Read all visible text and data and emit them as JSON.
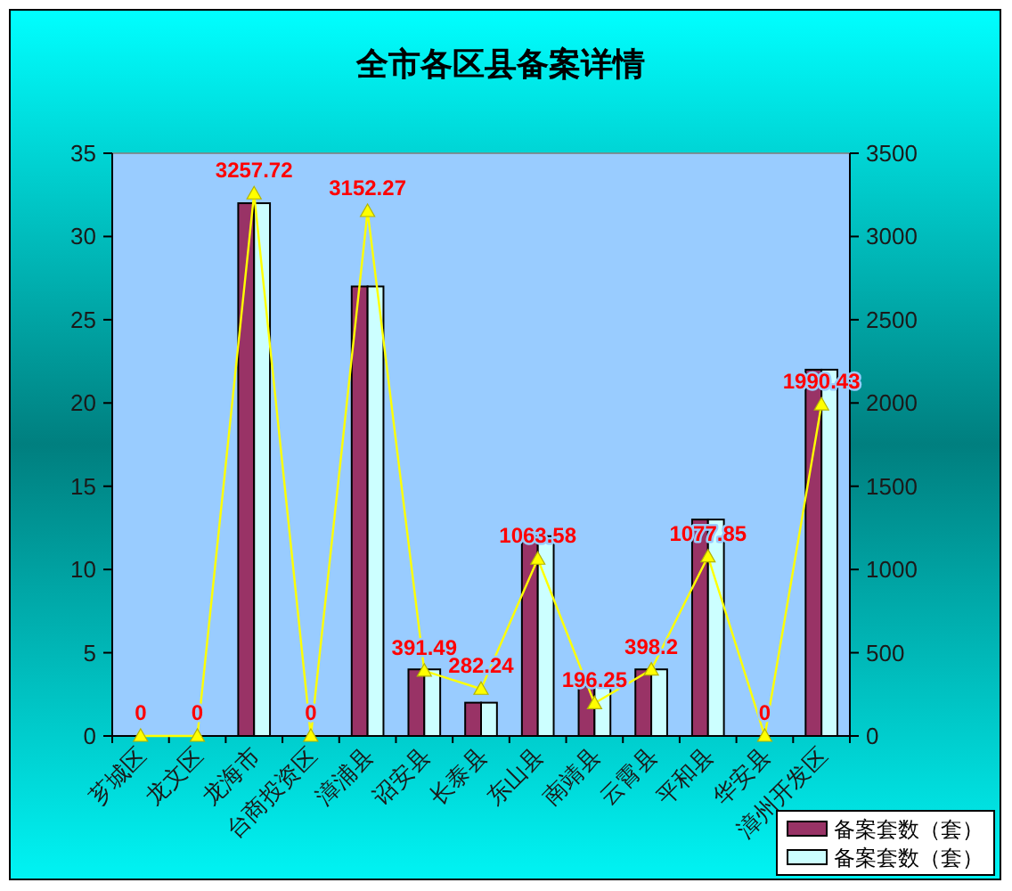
{
  "chart_data": {
    "type": "bar",
    "title": "全市各区县备案详情",
    "categories": [
      "芗城区",
      "龙文区",
      "龙海市",
      "台商投资区",
      "漳浦县",
      "诏安县",
      "长泰县",
      "东山县",
      "南靖县",
      "云霄县",
      "平和县",
      "华安县",
      "漳州开发区"
    ],
    "series": [
      {
        "name": "备案套数（套）",
        "color": "#993366",
        "values": [
          0,
          0,
          32,
          0,
          27,
          4,
          2,
          12,
          3,
          4,
          13,
          0,
          22
        ]
      },
      {
        "name": "备案套数（套）",
        "color": "#ccffff",
        "values": [
          0,
          0,
          32,
          0,
          27,
          4,
          2,
          12,
          3,
          4,
          13,
          0,
          22
        ]
      },
      {
        "type": "line",
        "axis": "y2",
        "color": "#ffff00",
        "marker": "triangle",
        "values": [
          0,
          0,
          3257.72,
          0,
          3152.27,
          391.49,
          282.24,
          1063.58,
          196.25,
          398.2,
          1077.85,
          0,
          1990.43
        ],
        "value_labels": [
          "0",
          "0",
          "3257.72",
          "0",
          "3152.27",
          "391.49",
          "282.24",
          "1063.58",
          "196.25",
          "398.2",
          "1077.85",
          "0",
          "1990.43"
        ]
      }
    ],
    "ylim": [
      0,
      35
    ],
    "yticks": [
      0,
      5,
      10,
      15,
      20,
      25,
      30,
      35
    ],
    "y2lim": [
      0,
      3500
    ],
    "y2ticks": [
      0,
      500,
      1000,
      1500,
      2000,
      2500,
      3000,
      3500
    ],
    "legend": "bottom right"
  }
}
